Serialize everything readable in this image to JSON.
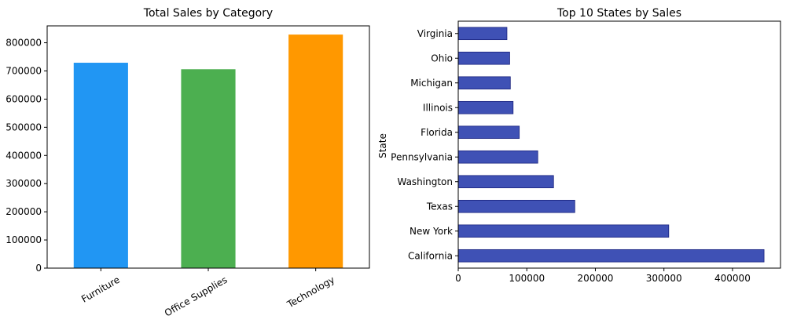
{
  "chart_data": [
    {
      "type": "bar",
      "title": "Total Sales by Category",
      "xlabel": "",
      "ylabel": "",
      "categories": [
        "Furniture",
        "Office Supplies",
        "Technology"
      ],
      "values": [
        728000,
        705000,
        828000
      ],
      "colors": [
        "#2196F3",
        "#4CAF50",
        "#FF9800"
      ],
      "ylim": [
        0,
        860000
      ],
      "yticks": [
        "0",
        "100000",
        "200000",
        "300000",
        "400000",
        "500000",
        "600000",
        "700000",
        "800000"
      ],
      "grid": false
    },
    {
      "type": "bar",
      "orientation": "horizontal",
      "title": "Top 10 States by Sales",
      "xlabel": "",
      "ylabel": "State",
      "categories": [
        "California",
        "New York",
        "Texas",
        "Washington",
        "Pennsylvania",
        "Florida",
        "Illinois",
        "Michigan",
        "Ohio",
        "Virginia"
      ],
      "values": [
        446000,
        307000,
        170000,
        139000,
        116000,
        89000,
        80000,
        76000,
        75000,
        71000
      ],
      "color": "#3F51B5",
      "xlim": [
        0,
        470000
      ],
      "xticks": [
        "0",
        "100000",
        "200000",
        "300000",
        "400000"
      ],
      "grid": false
    }
  ]
}
